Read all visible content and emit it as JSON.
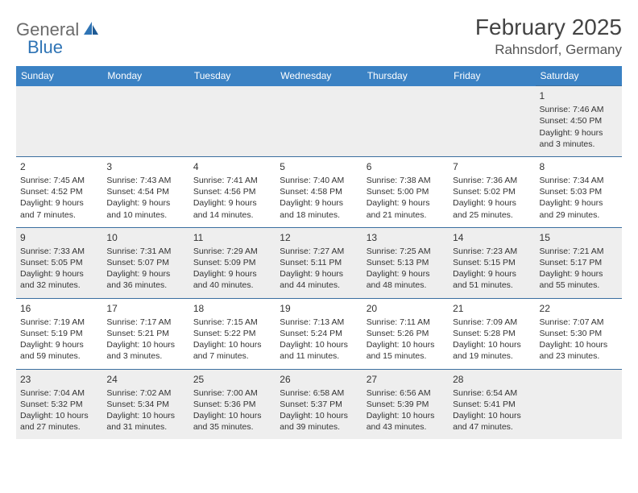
{
  "logo": {
    "part1": "General",
    "part2": "Blue"
  },
  "title": "February 2025",
  "location": "Rahnsdorf, Germany",
  "colors": {
    "header_bg": "#3b82c4",
    "header_fg": "#ffffff",
    "alt_row_bg": "#eeeeee",
    "row_border": "#3b6fa0",
    "logo_gray": "#6b6b6b",
    "logo_blue": "#2f74b5"
  },
  "day_headers": [
    "Sunday",
    "Monday",
    "Tuesday",
    "Wednesday",
    "Thursday",
    "Friday",
    "Saturday"
  ],
  "weeks": [
    [
      null,
      null,
      null,
      null,
      null,
      null,
      {
        "n": "1",
        "sr": "Sunrise: 7:46 AM",
        "ss": "Sunset: 4:50 PM",
        "dl": "Daylight: 9 hours and 3 minutes."
      }
    ],
    [
      {
        "n": "2",
        "sr": "Sunrise: 7:45 AM",
        "ss": "Sunset: 4:52 PM",
        "dl": "Daylight: 9 hours and 7 minutes."
      },
      {
        "n": "3",
        "sr": "Sunrise: 7:43 AM",
        "ss": "Sunset: 4:54 PM",
        "dl": "Daylight: 9 hours and 10 minutes."
      },
      {
        "n": "4",
        "sr": "Sunrise: 7:41 AM",
        "ss": "Sunset: 4:56 PM",
        "dl": "Daylight: 9 hours and 14 minutes."
      },
      {
        "n": "5",
        "sr": "Sunrise: 7:40 AM",
        "ss": "Sunset: 4:58 PM",
        "dl": "Daylight: 9 hours and 18 minutes."
      },
      {
        "n": "6",
        "sr": "Sunrise: 7:38 AM",
        "ss": "Sunset: 5:00 PM",
        "dl": "Daylight: 9 hours and 21 minutes."
      },
      {
        "n": "7",
        "sr": "Sunrise: 7:36 AM",
        "ss": "Sunset: 5:02 PM",
        "dl": "Daylight: 9 hours and 25 minutes."
      },
      {
        "n": "8",
        "sr": "Sunrise: 7:34 AM",
        "ss": "Sunset: 5:03 PM",
        "dl": "Daylight: 9 hours and 29 minutes."
      }
    ],
    [
      {
        "n": "9",
        "sr": "Sunrise: 7:33 AM",
        "ss": "Sunset: 5:05 PM",
        "dl": "Daylight: 9 hours and 32 minutes."
      },
      {
        "n": "10",
        "sr": "Sunrise: 7:31 AM",
        "ss": "Sunset: 5:07 PM",
        "dl": "Daylight: 9 hours and 36 minutes."
      },
      {
        "n": "11",
        "sr": "Sunrise: 7:29 AM",
        "ss": "Sunset: 5:09 PM",
        "dl": "Daylight: 9 hours and 40 minutes."
      },
      {
        "n": "12",
        "sr": "Sunrise: 7:27 AM",
        "ss": "Sunset: 5:11 PM",
        "dl": "Daylight: 9 hours and 44 minutes."
      },
      {
        "n": "13",
        "sr": "Sunrise: 7:25 AM",
        "ss": "Sunset: 5:13 PM",
        "dl": "Daylight: 9 hours and 48 minutes."
      },
      {
        "n": "14",
        "sr": "Sunrise: 7:23 AM",
        "ss": "Sunset: 5:15 PM",
        "dl": "Daylight: 9 hours and 51 minutes."
      },
      {
        "n": "15",
        "sr": "Sunrise: 7:21 AM",
        "ss": "Sunset: 5:17 PM",
        "dl": "Daylight: 9 hours and 55 minutes."
      }
    ],
    [
      {
        "n": "16",
        "sr": "Sunrise: 7:19 AM",
        "ss": "Sunset: 5:19 PM",
        "dl": "Daylight: 9 hours and 59 minutes."
      },
      {
        "n": "17",
        "sr": "Sunrise: 7:17 AM",
        "ss": "Sunset: 5:21 PM",
        "dl": "Daylight: 10 hours and 3 minutes."
      },
      {
        "n": "18",
        "sr": "Sunrise: 7:15 AM",
        "ss": "Sunset: 5:22 PM",
        "dl": "Daylight: 10 hours and 7 minutes."
      },
      {
        "n": "19",
        "sr": "Sunrise: 7:13 AM",
        "ss": "Sunset: 5:24 PM",
        "dl": "Daylight: 10 hours and 11 minutes."
      },
      {
        "n": "20",
        "sr": "Sunrise: 7:11 AM",
        "ss": "Sunset: 5:26 PM",
        "dl": "Daylight: 10 hours and 15 minutes."
      },
      {
        "n": "21",
        "sr": "Sunrise: 7:09 AM",
        "ss": "Sunset: 5:28 PM",
        "dl": "Daylight: 10 hours and 19 minutes."
      },
      {
        "n": "22",
        "sr": "Sunrise: 7:07 AM",
        "ss": "Sunset: 5:30 PM",
        "dl": "Daylight: 10 hours and 23 minutes."
      }
    ],
    [
      {
        "n": "23",
        "sr": "Sunrise: 7:04 AM",
        "ss": "Sunset: 5:32 PM",
        "dl": "Daylight: 10 hours and 27 minutes."
      },
      {
        "n": "24",
        "sr": "Sunrise: 7:02 AM",
        "ss": "Sunset: 5:34 PM",
        "dl": "Daylight: 10 hours and 31 minutes."
      },
      {
        "n": "25",
        "sr": "Sunrise: 7:00 AM",
        "ss": "Sunset: 5:36 PM",
        "dl": "Daylight: 10 hours and 35 minutes."
      },
      {
        "n": "26",
        "sr": "Sunrise: 6:58 AM",
        "ss": "Sunset: 5:37 PM",
        "dl": "Daylight: 10 hours and 39 minutes."
      },
      {
        "n": "27",
        "sr": "Sunrise: 6:56 AM",
        "ss": "Sunset: 5:39 PM",
        "dl": "Daylight: 10 hours and 43 minutes."
      },
      {
        "n": "28",
        "sr": "Sunrise: 6:54 AM",
        "ss": "Sunset: 5:41 PM",
        "dl": "Daylight: 10 hours and 47 minutes."
      },
      null
    ]
  ]
}
